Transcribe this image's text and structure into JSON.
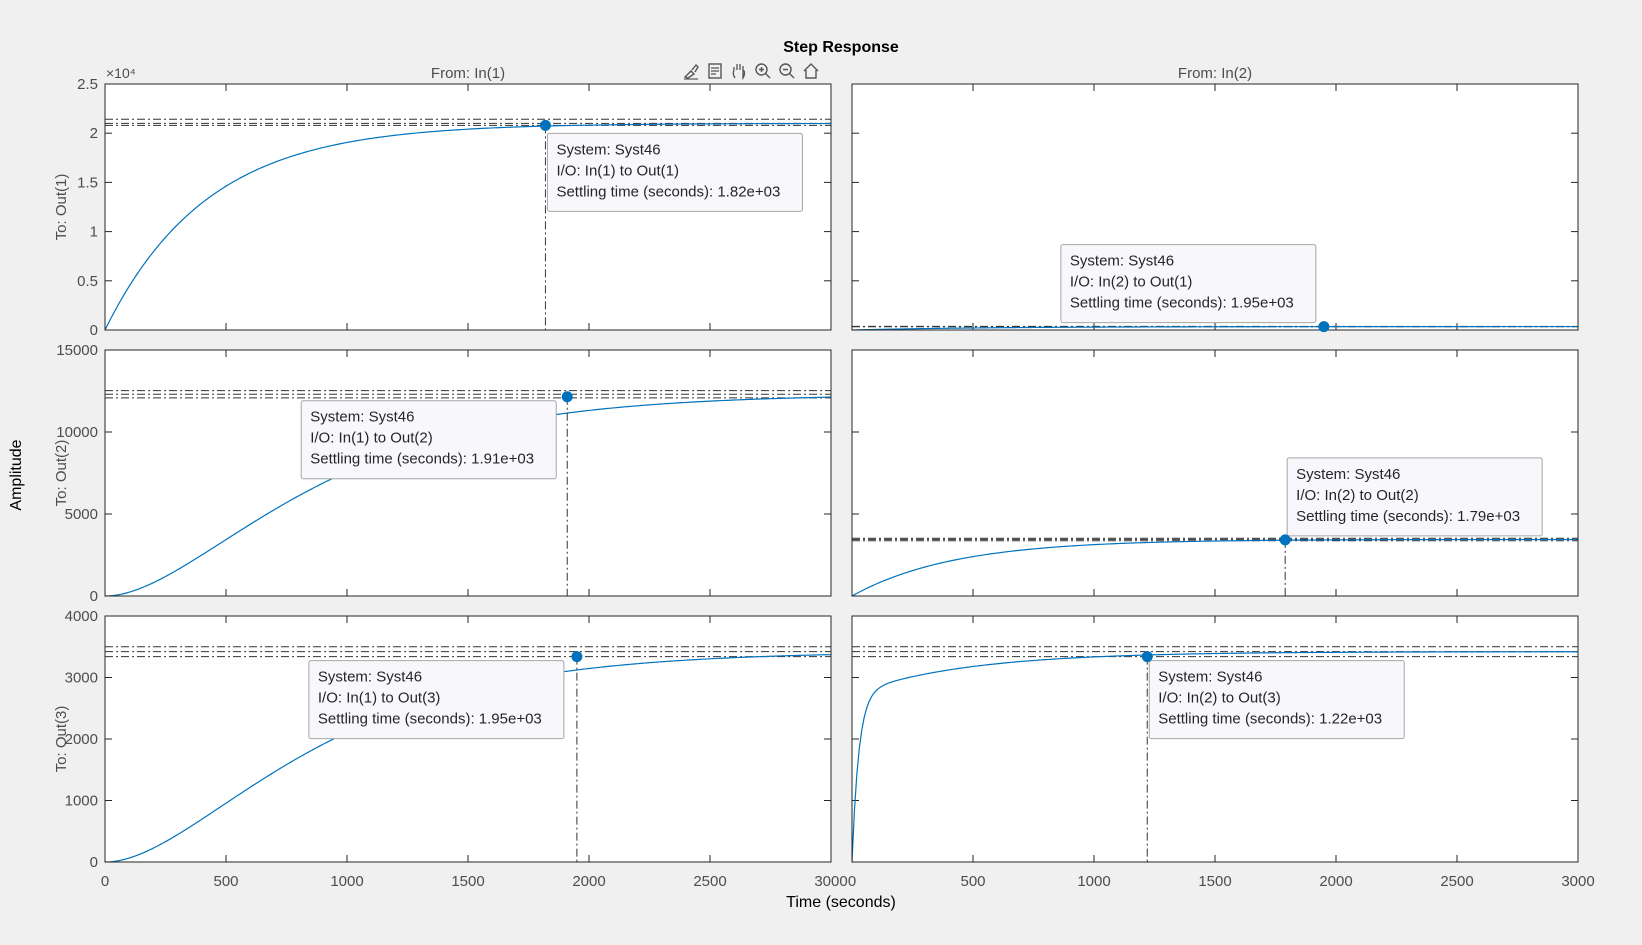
{
  "window": {
    "toolbar": [
      {
        "name": "brush-icon"
      },
      {
        "name": "datatip-icon"
      },
      {
        "name": "pan-hand-icon"
      },
      {
        "name": "zoom-in-icon"
      },
      {
        "name": "zoom-out-icon"
      },
      {
        "name": "home-icon"
      }
    ]
  },
  "chart_data": {
    "type": "line",
    "title": "Step Response",
    "xlabel": "Time (seconds)",
    "ylabel": "Amplitude",
    "input_labels": [
      "From: In(1)",
      "From: In(2)"
    ],
    "output_labels": [
      "To: Out(1)",
      "To: Out(2)",
      "To: Out(3)"
    ],
    "xlim": [
      0,
      3000
    ],
    "xticks": [
      0,
      500,
      1000,
      1500,
      2000,
      2500,
      3000
    ],
    "xtick_labels": [
      "0",
      "500",
      "1000",
      "1500",
      "2000",
      "2500",
      "3000"
    ],
    "colors": {
      "line": "#0072bd",
      "marker": "#0072bd",
      "settle_line": "#333333"
    },
    "rows": [
      {
        "ylim": [
          0,
          25000
        ],
        "yticks": [
          0,
          5000,
          10000,
          15000,
          20000,
          25000
        ],
        "ytick_labels": [
          "0",
          "0.5",
          "1",
          "1.5",
          "2",
          "2.5"
        ],
        "exponent_label": "×10⁴",
        "panels": [
          {
            "final": 21000,
            "shape": "first-order",
            "tau": 420,
            "settle_time": 1820,
            "settle_value": 20800,
            "lines": [
              21000,
              20790,
              21420
            ],
            "tip": {
              "system": "System: Syst46",
              "io": "I/O: In(1) to Out(1)",
              "settle": "Settling time (seconds): 1.82e+03"
            }
          },
          {
            "final": 350,
            "shape": "first-order",
            "tau": 560,
            "settle_time": 1950,
            "settle_value": 340,
            "lines": [
              350,
              330,
              370
            ],
            "tip": {
              "system": "System: Syst46",
              "io": "I/O: In(2) to Out(1)",
              "settle": "Settling time (seconds): 1.95e+03"
            }
          }
        ]
      },
      {
        "ylim": [
          0,
          15000
        ],
        "yticks": [
          0,
          5000,
          10000,
          15000
        ],
        "ytick_labels": [
          "0",
          "5000",
          "10000",
          "15000"
        ],
        "exponent_label": "",
        "panels": [
          {
            "final": 12300,
            "shape": "second-order",
            "tau": 480,
            "settle_time": 1910,
            "settle_value": 12150,
            "lines": [
              12300,
              12080,
              12520
            ],
            "tip": {
              "system": "System: Syst46",
              "io": "I/O: In(1) to Out(2)",
              "settle": "Settling time (seconds): 1.91e+03"
            }
          },
          {
            "final": 3450,
            "shape": "first-order",
            "tau": 420,
            "settle_time": 1790,
            "settle_value": 3420,
            "lines": [
              3450,
              3370,
              3520
            ],
            "tip": {
              "system": "System: Syst46",
              "io": "I/O: In(2) to Out(2)",
              "settle": "Settling time (seconds): 1.79e+03"
            }
          }
        ]
      },
      {
        "ylim": [
          0,
          4000
        ],
        "yticks": [
          0,
          1000,
          2000,
          3000,
          4000
        ],
        "ytick_labels": [
          "0",
          "1000",
          "2000",
          "3000",
          "4000"
        ],
        "exponent_label": "",
        "panels": [
          {
            "final": 3420,
            "shape": "second-order",
            "tau": 480,
            "settle_time": 1950,
            "settle_value": 3340,
            "lines": [
              3420,
              3340,
              3500
            ],
            "tip": {
              "system": "System: Syst46",
              "io": "I/O: In(1) to Out(3)",
              "settle": "Settling time (seconds): 1.95e+03"
            }
          },
          {
            "final": 3420,
            "shape": "two-mode",
            "tau": 28,
            "settle_time": 1220,
            "settle_value": 3340,
            "lines": [
              3420,
              3340,
              3500
            ],
            "tip": {
              "system": "System: Syst46",
              "io": "I/O: In(2) to Out(3)",
              "settle": "Settling time (seconds): 1.22e+03"
            }
          }
        ]
      }
    ]
  }
}
